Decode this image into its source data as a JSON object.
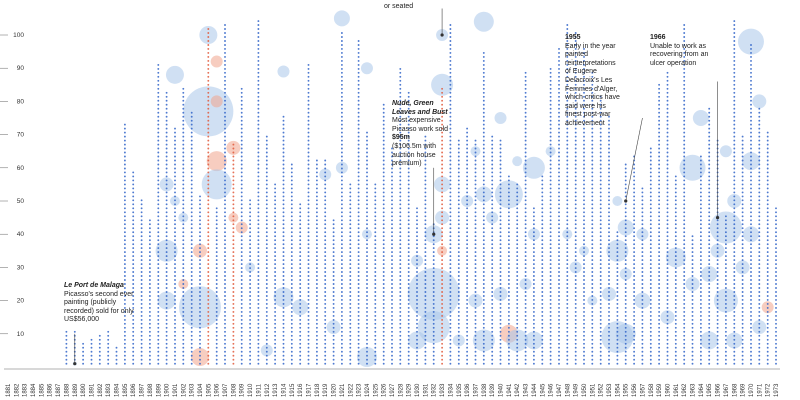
{
  "chart_data": {
    "type": "scatter",
    "xlabel": "",
    "ylabel": "",
    "ylim": [
      0,
      105
    ],
    "y_ticks": [
      10,
      20,
      30,
      40,
      50,
      60,
      70,
      80,
      90,
      100
    ],
    "x_start": 1881,
    "x_end": 1973,
    "x_labels": [
      "1881",
      "1882",
      "1883",
      "1884",
      "1885",
      "1886",
      "1887",
      "1888",
      "1889",
      "1890",
      "1891",
      "1892",
      "1893",
      "1894",
      "1895",
      "1896",
      "1897",
      "1898",
      "1899",
      "1900",
      "1901",
      "1902",
      "1903",
      "1904",
      "1905",
      "1906",
      "1907",
      "1908",
      "1909",
      "1910",
      "1911",
      "1912",
      "1913",
      "1914",
      "1915",
      "1916",
      "1917",
      "1918",
      "1919",
      "1920",
      "1921",
      "1922",
      "1923",
      "1924",
      "1925",
      "1926",
      "1927",
      "1928",
      "1929",
      "1930",
      "1931",
      "1932",
      "1933",
      "1934",
      "1935",
      "1936",
      "1937",
      "1938",
      "1939",
      "1940",
      "1941",
      "1942",
      "1943",
      "1944",
      "1945",
      "1946",
      "1947",
      "1948",
      "1949",
      "1950",
      "1951",
      "1952",
      "1953",
      "1954",
      "1955",
      "1956",
      "1957",
      "1958",
      "1959",
      "1960",
      "1961",
      "1962",
      "1963",
      "1964",
      "1965",
      "1966",
      "1967",
      "1968",
      "1969",
      "1970",
      "1971",
      "1972",
      "1973"
    ],
    "colors": {
      "blue": "#2f63c8",
      "red": "#e0583a",
      "bubble_blue": "#a9c6ea",
      "bubble_red": "#f1a48c",
      "axis": "#666666"
    },
    "bubbles": [
      {
        "x": 1889,
        "y": 1,
        "r": 2,
        "c": "b"
      },
      {
        "x": 1900,
        "y": 35,
        "r": 11,
        "c": "b"
      },
      {
        "x": 1900,
        "y": 20,
        "r": 9,
        "c": "b"
      },
      {
        "x": 1900,
        "y": 55,
        "r": 7,
        "c": "b"
      },
      {
        "x": 1901,
        "y": 88,
        "r": 9,
        "c": "b"
      },
      {
        "x": 1901,
        "y": 50,
        "r": 5,
        "c": "b"
      },
      {
        "x": 1902,
        "y": 45,
        "r": 5,
        "c": "b"
      },
      {
        "x": 1902,
        "y": 25,
        "r": 5,
        "c": "r"
      },
      {
        "x": 1904,
        "y": 18,
        "r": 21,
        "c": "b"
      },
      {
        "x": 1904,
        "y": 35,
        "r": 7,
        "c": "r"
      },
      {
        "x": 1904,
        "y": 3,
        "r": 9,
        "c": "r"
      },
      {
        "x": 1905,
        "y": 77,
        "r": 25,
        "c": "b"
      },
      {
        "x": 1905,
        "y": 100,
        "r": 9,
        "c": "b"
      },
      {
        "x": 1906,
        "y": 92,
        "r": 6,
        "c": "r"
      },
      {
        "x": 1906,
        "y": 80,
        "r": 6,
        "c": "r"
      },
      {
        "x": 1906,
        "y": 62,
        "r": 10,
        "c": "r"
      },
      {
        "x": 1906,
        "y": 55,
        "r": 15,
        "c": "b"
      },
      {
        "x": 1908,
        "y": 66,
        "r": 7,
        "c": "r"
      },
      {
        "x": 1908,
        "y": 45,
        "r": 5,
        "c": "r"
      },
      {
        "x": 1909,
        "y": 42,
        "r": 6,
        "c": "r"
      },
      {
        "x": 1910,
        "y": 30,
        "r": 5,
        "c": "b"
      },
      {
        "x": 1912,
        "y": 5,
        "r": 6,
        "c": "b"
      },
      {
        "x": 1914,
        "y": 89,
        "r": 6,
        "c": "b"
      },
      {
        "x": 1914,
        "y": 21,
        "r": 10,
        "c": "b"
      },
      {
        "x": 1916,
        "y": 18,
        "r": 8,
        "c": "b"
      },
      {
        "x": 1919,
        "y": 58,
        "r": 6,
        "c": "b"
      },
      {
        "x": 1920,
        "y": 12,
        "r": 7,
        "c": "b"
      },
      {
        "x": 1921,
        "y": 105,
        "r": 8,
        "c": "b"
      },
      {
        "x": 1921,
        "y": 60,
        "r": 6,
        "c": "b"
      },
      {
        "x": 1924,
        "y": 90,
        "r": 6,
        "c": "b"
      },
      {
        "x": 1924,
        "y": 40,
        "r": 5,
        "c": "b"
      },
      {
        "x": 1924,
        "y": 3,
        "r": 10,
        "c": "b"
      },
      {
        "x": 1930,
        "y": 32,
        "r": 6,
        "c": "b"
      },
      {
        "x": 1930,
        "y": 8,
        "r": 9,
        "c": "b"
      },
      {
        "x": 1932,
        "y": 22,
        "r": 26,
        "c": "b"
      },
      {
        "x": 1932,
        "y": 12,
        "r": 16,
        "c": "b"
      },
      {
        "x": 1932,
        "y": 40,
        "r": 9,
        "c": "b"
      },
      {
        "x": 1933,
        "y": 85,
        "r": 11,
        "c": "b"
      },
      {
        "x": 1933,
        "y": 55,
        "r": 8,
        "c": "b"
      },
      {
        "x": 1933,
        "y": 35,
        "r": 5,
        "c": "r"
      },
      {
        "x": 1933,
        "y": 100,
        "r": 6,
        "c": "b"
      },
      {
        "x": 1933,
        "y": 45,
        "r": 7,
        "c": "b"
      },
      {
        "x": 1935,
        "y": 8,
        "r": 6,
        "c": "b"
      },
      {
        "x": 1936,
        "y": 50,
        "r": 6,
        "c": "b"
      },
      {
        "x": 1937,
        "y": 65,
        "r": 5,
        "c": "b"
      },
      {
        "x": 1937,
        "y": 20,
        "r": 7,
        "c": "b"
      },
      {
        "x": 1938,
        "y": 104,
        "r": 10,
        "c": "b"
      },
      {
        "x": 1938,
        "y": 52,
        "r": 8,
        "c": "b"
      },
      {
        "x": 1938,
        "y": 8,
        "r": 11,
        "c": "b"
      },
      {
        "x": 1939,
        "y": 45,
        "r": 6,
        "c": "b"
      },
      {
        "x": 1940,
        "y": 22,
        "r": 7,
        "c": "b"
      },
      {
        "x": 1940,
        "y": 75,
        "r": 6,
        "c": "b"
      },
      {
        "x": 1941,
        "y": 10,
        "r": 9,
        "c": "r"
      },
      {
        "x": 1941,
        "y": 52,
        "r": 14,
        "c": "b"
      },
      {
        "x": 1942,
        "y": 8,
        "r": 11,
        "c": "b"
      },
      {
        "x": 1942,
        "y": 62,
        "r": 5,
        "c": "b"
      },
      {
        "x": 1943,
        "y": 25,
        "r": 6,
        "c": "b"
      },
      {
        "x": 1944,
        "y": 60,
        "r": 11,
        "c": "b"
      },
      {
        "x": 1944,
        "y": 40,
        "r": 6,
        "c": "b"
      },
      {
        "x": 1944,
        "y": 8,
        "r": 9,
        "c": "b"
      },
      {
        "x": 1946,
        "y": 65,
        "r": 5,
        "c": "b"
      },
      {
        "x": 1948,
        "y": 40,
        "r": 5,
        "c": "b"
      },
      {
        "x": 1949,
        "y": 30,
        "r": 6,
        "c": "b"
      },
      {
        "x": 1950,
        "y": 35,
        "r": 5,
        "c": "b"
      },
      {
        "x": 1951,
        "y": 20,
        "r": 5,
        "c": "b"
      },
      {
        "x": 1953,
        "y": 22,
        "r": 7,
        "c": "b"
      },
      {
        "x": 1954,
        "y": 35,
        "r": 11,
        "c": "b"
      },
      {
        "x": 1954,
        "y": 9,
        "r": 16,
        "c": "b"
      },
      {
        "x": 1954,
        "y": 50,
        "r": 5,
        "c": "b"
      },
      {
        "x": 1955,
        "y": 42,
        "r": 8,
        "c": "b"
      },
      {
        "x": 1955,
        "y": 10,
        "r": 10,
        "c": "b"
      },
      {
        "x": 1955,
        "y": 28,
        "r": 6,
        "c": "b"
      },
      {
        "x": 1957,
        "y": 40,
        "r": 6,
        "c": "b"
      },
      {
        "x": 1957,
        "y": 20,
        "r": 8,
        "c": "b"
      },
      {
        "x": 1960,
        "y": 15,
        "r": 7,
        "c": "b"
      },
      {
        "x": 1961,
        "y": 33,
        "r": 10,
        "c": "b"
      },
      {
        "x": 1963,
        "y": 60,
        "r": 13,
        "c": "b"
      },
      {
        "x": 1963,
        "y": 25,
        "r": 7,
        "c": "b"
      },
      {
        "x": 1964,
        "y": 75,
        "r": 8,
        "c": "b"
      },
      {
        "x": 1965,
        "y": 28,
        "r": 8,
        "c": "b"
      },
      {
        "x": 1965,
        "y": 8,
        "r": 9,
        "c": "b"
      },
      {
        "x": 1966,
        "y": 35,
        "r": 7,
        "c": "b"
      },
      {
        "x": 1967,
        "y": 42,
        "r": 16,
        "c": "b"
      },
      {
        "x": 1967,
        "y": 20,
        "r": 12,
        "c": "b"
      },
      {
        "x": 1967,
        "y": 65,
        "r": 6,
        "c": "b"
      },
      {
        "x": 1968,
        "y": 50,
        "r": 7,
        "c": "b"
      },
      {
        "x": 1968,
        "y": 8,
        "r": 8,
        "c": "b"
      },
      {
        "x": 1969,
        "y": 30,
        "r": 7,
        "c": "b"
      },
      {
        "x": 1970,
        "y": 98,
        "r": 13,
        "c": "b"
      },
      {
        "x": 1970,
        "y": 62,
        "r": 9,
        "c": "b"
      },
      {
        "x": 1970,
        "y": 40,
        "r": 8,
        "c": "b"
      },
      {
        "x": 1971,
        "y": 80,
        "r": 7,
        "c": "b"
      },
      {
        "x": 1971,
        "y": 12,
        "r": 7,
        "c": "b"
      },
      {
        "x": 1972,
        "y": 18,
        "r": 6,
        "c": "r"
      }
    ],
    "annotations": [
      {
        "id": "port-de-malaga",
        "x": 1889,
        "y": 1,
        "title": "Le Port de Malaga",
        "title_italic": true,
        "body": "Picasso's second ever painting (publicly recorded) sold for only US$56,000",
        "emphasis": ""
      },
      {
        "id": "nude-green-leaves",
        "x": 1932,
        "y": 40,
        "title": "Nude, Green Leaves and Bust",
        "title_italic": true,
        "body": "Most expensive Picasso work sold",
        "emphasis": "$95m",
        "tail": "($106.5m with auction house premium)"
      },
      {
        "id": "or-seated",
        "x": 1933,
        "y": 100,
        "title": "",
        "title_italic": false,
        "body": "or seated",
        "emphasis": ""
      },
      {
        "id": "y1955",
        "x": 1955,
        "y": 50,
        "title": "1955",
        "title_italic": false,
        "body": "Early in the year painted reinterpretations of Eugene Delacroix's Les Femmes d'Alger, which critics have said were his finest post-war achievement",
        "emphasis": ""
      },
      {
        "id": "y1966",
        "x": 1966,
        "y": 45,
        "title": "1966",
        "title_italic": false,
        "body": "Unable to work as recovering from an ulcer operation",
        "emphasis": ""
      }
    ]
  }
}
